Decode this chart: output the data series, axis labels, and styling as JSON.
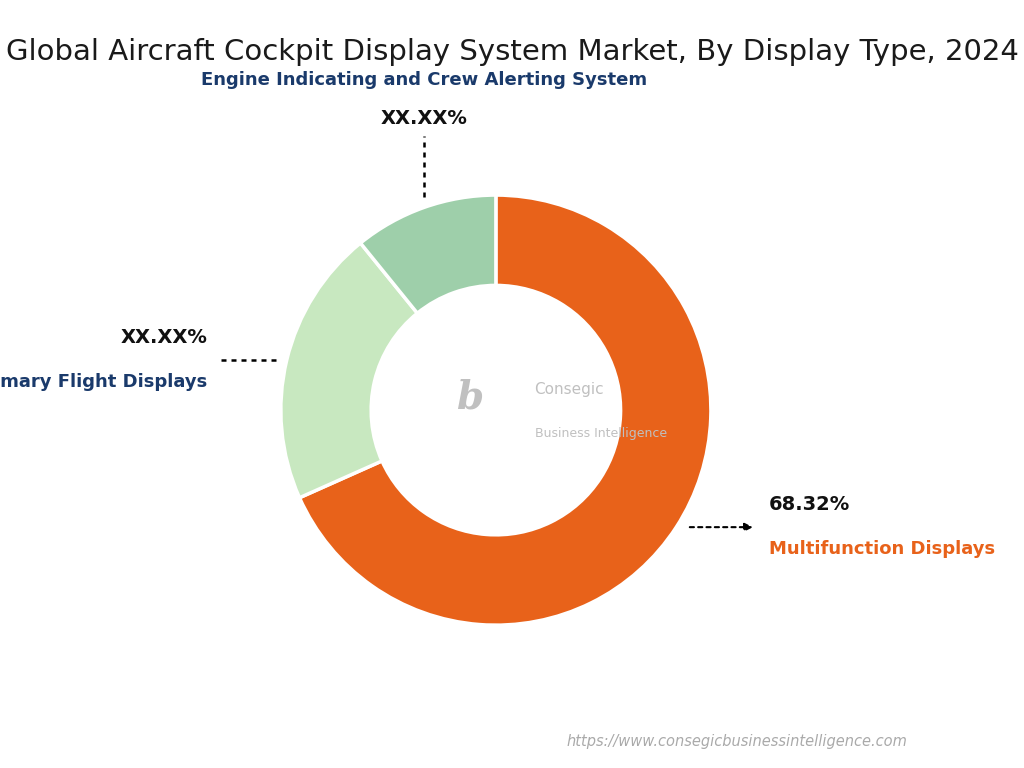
{
  "title": "Global Aircraft Cockpit Display System Market, By Display Type, 2024",
  "title_fontsize": 21,
  "title_color": "#1a1a1a",
  "segments": [
    {
      "label": "Multifunction Displays",
      "value": 68.32,
      "display_value": "68.32%",
      "color": "#E8621A",
      "label_color": "#E8621A",
      "value_color": "#111111"
    },
    {
      "label": "Primary Flight Displays",
      "value": 20.84,
      "display_value": "XX.XX%",
      "color": "#C8E8C0",
      "label_color": "#1a3a6b",
      "value_color": "#111111"
    },
    {
      "label": "Engine Indicating and Crew Alerting System",
      "value": 10.84,
      "display_value": "XX.XX%",
      "color": "#9ECFAA",
      "label_color": "#1a3a6b",
      "value_color": "#111111"
    }
  ],
  "center_text_line1": "Consegic",
  "center_text_line2": "Business Intelligence",
  "center_text_color": "#bbbbbb",
  "watermark": "https://www.consegicbusinessintelligence.com",
  "watermark_color": "#aaaaaa",
  "background_color": "#ffffff",
  "donut_width": 0.42
}
